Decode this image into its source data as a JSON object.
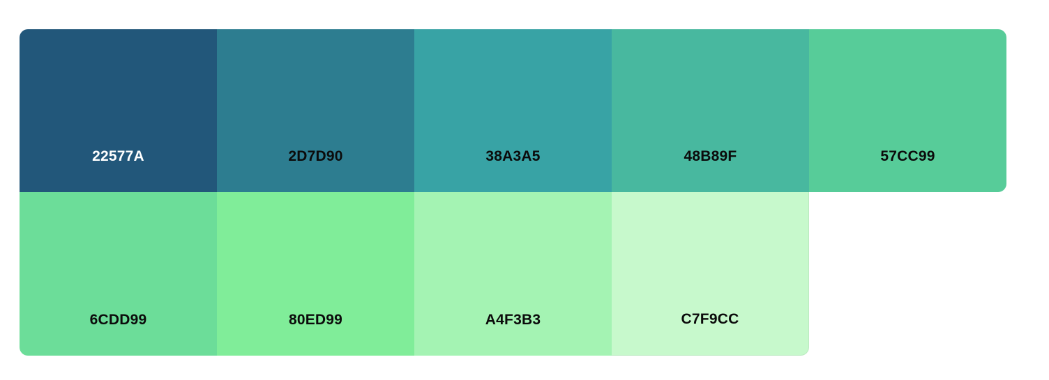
{
  "palette": {
    "swatches": [
      {
        "hex": "22577A",
        "color": "#22577A",
        "text_color": "#FFFFFF"
      },
      {
        "hex": "2D7D90",
        "color": "#2D7D90",
        "text_color": "#0B0B0B"
      },
      {
        "hex": "38A3A5",
        "color": "#38A3A5",
        "text_color": "#0B0B0B"
      },
      {
        "hex": "48B89F",
        "color": "#48B89F",
        "text_color": "#0B0B0B"
      },
      {
        "hex": "57CC99",
        "color": "#57CC99",
        "text_color": "#0B0B0B"
      },
      {
        "hex": "6CDD99",
        "color": "#6CDD99",
        "text_color": "#0B0B0B"
      },
      {
        "hex": "80ED99",
        "color": "#80ED99",
        "text_color": "#0B0B0B"
      },
      {
        "hex": "A4F3B3",
        "color": "#A4F3B3",
        "text_color": "#0B0B0B"
      },
      {
        "hex": "C7F9CC",
        "color": "#C7F9CC",
        "text_color": "#0B0B0B"
      }
    ]
  }
}
